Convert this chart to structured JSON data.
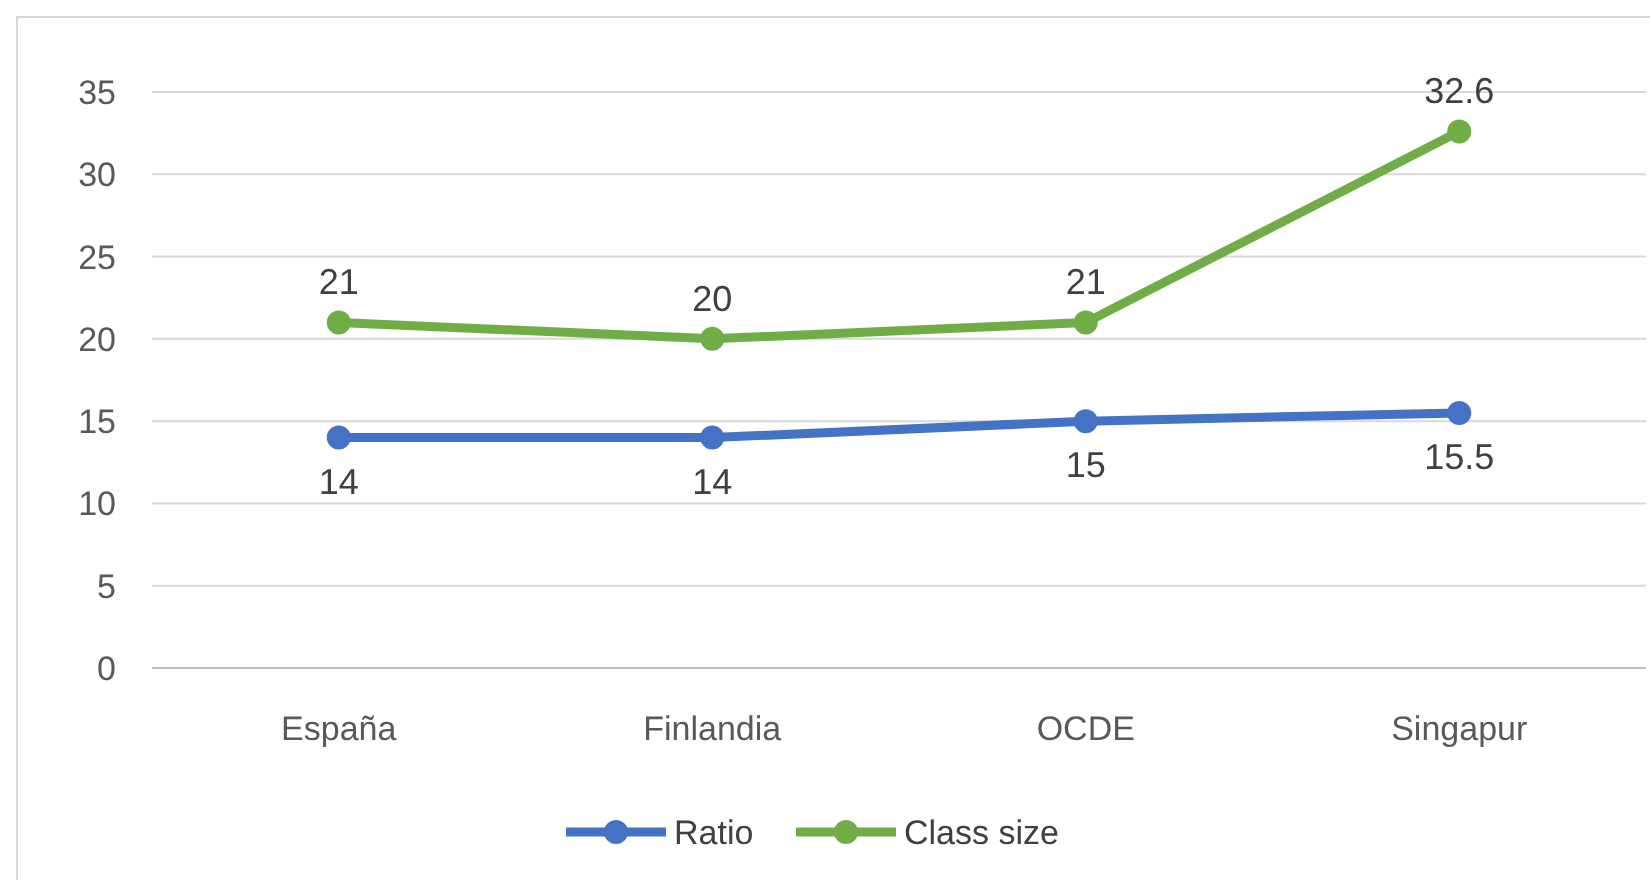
{
  "chart_data": {
    "type": "line",
    "categories": [
      "España",
      "Finlandia",
      "OCDE",
      "Singapur"
    ],
    "series": [
      {
        "name": "Ratio",
        "color": "#4472c4",
        "values": [
          14,
          14,
          15,
          15.5
        ]
      },
      {
        "name": "Class size",
        "color": "#70ad47",
        "values": [
          21,
          20,
          21,
          32.6
        ]
      }
    ],
    "ylim": [
      0,
      35
    ],
    "yticks": [
      0,
      5,
      10,
      15,
      20,
      25,
      30,
      35
    ],
    "grid": "y",
    "legend": "bottom",
    "marker": "circle",
    "line_style": "solid",
    "data_labels": true
  }
}
